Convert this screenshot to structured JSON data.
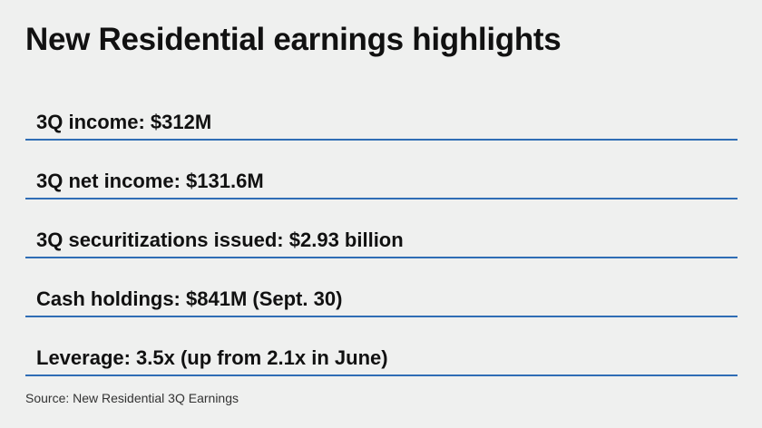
{
  "title": "New Residential earnings highlights",
  "highlights": [
    {
      "text": "3Q income: $312M"
    },
    {
      "text": "3Q net income: $131.6M"
    },
    {
      "text": "3Q securitizations issued: $2.93 billion"
    },
    {
      "text": "Cash holdings: $841M (Sept. 30)"
    },
    {
      "text": "Leverage: 3.5x (up from 2.1x in June)"
    }
  ],
  "source": "Source: New Residential 3Q Earnings",
  "colors": {
    "background": "#eff0ef",
    "rule": "#2f6db5",
    "text": "#111111"
  }
}
